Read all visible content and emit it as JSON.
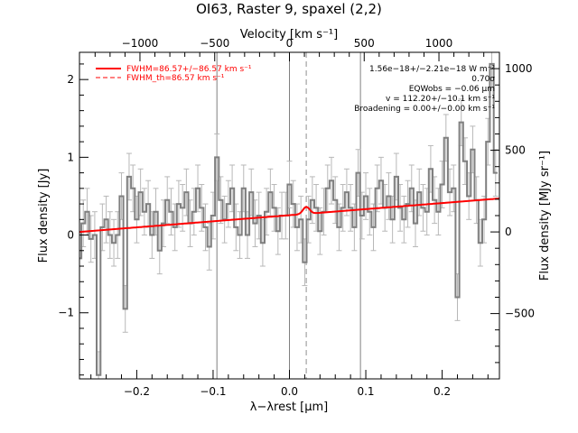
{
  "chart_data": {
    "type": "line",
    "title": "OI63, Raster 9, spaxel (2,2)",
    "xlabel": "λ−λrest [μm]",
    "ylabel_left": "Flux density [Jy]",
    "ylabel_right": "Flux density [MJy sr⁻¹]",
    "top_axis_label": "Velocity [km s⁻¹]",
    "xlim": [
      -0.275,
      0.275
    ],
    "ylim": [
      -1.85,
      2.35
    ],
    "right_ylim": [
      -900,
      1100
    ],
    "x_ticks": [
      -0.2,
      -0.1,
      0.0,
      0.1,
      0.2
    ],
    "x_tick_labels": [
      "−0.2",
      "−0.1",
      "0.0",
      "0.1",
      "0.2"
    ],
    "y_ticks": [
      -1,
      0,
      1,
      2
    ],
    "y_tick_labels": [
      "−1",
      "0",
      "1",
      "2"
    ],
    "right_ticks": [
      -500,
      0,
      500,
      1000
    ],
    "right_tick_labels": [
      "−500",
      "0",
      "500",
      "1000"
    ],
    "top_ticks_kms": [
      -1000,
      -500,
      0,
      500,
      1000
    ],
    "top_tick_labels": [
      "−1000",
      "−500",
      "0",
      "500",
      "1000"
    ],
    "vertical_lines_x": [
      -0.095,
      0.0,
      0.093
    ],
    "line_center_x": 0.022,
    "legend": {
      "position": "top-left",
      "entries": [
        {
          "label": "FWHM=86.57+/−86.57 km s⁻¹",
          "style": "solid",
          "color": "#ff0000"
        },
        {
          "label": "FWHM_th=86.57 km s⁻¹",
          "style": "dashed",
          "color": "#ff0000"
        }
      ]
    },
    "annotations": [
      "1.56e−18+/−2.21e−18 W m⁻²",
      "0.70σ",
      "EQWobs = −0.06 μm",
      "v = 112.20+/−10.1 km s⁻¹",
      "Broadening = 0.00+/−0.00 km s⁻¹"
    ],
    "series": [
      {
        "style": "steps",
        "color": "#7f7f7f",
        "x": [
          -0.275,
          -0.27,
          -0.265,
          -0.26,
          -0.255,
          -0.25,
          -0.245,
          -0.24,
          -0.235,
          -0.23,
          -0.225,
          -0.22,
          -0.215,
          -0.21,
          -0.205,
          -0.2,
          -0.195,
          -0.19,
          -0.185,
          -0.18,
          -0.175,
          -0.17,
          -0.165,
          -0.16,
          -0.155,
          -0.15,
          -0.145,
          -0.14,
          -0.135,
          -0.13,
          -0.125,
          -0.12,
          -0.115,
          -0.11,
          -0.105,
          -0.1,
          -0.095,
          -0.09,
          -0.085,
          -0.08,
          -0.075,
          -0.07,
          -0.065,
          -0.06,
          -0.055,
          -0.05,
          -0.045,
          -0.04,
          -0.035,
          -0.03,
          -0.025,
          -0.02,
          -0.015,
          -0.01,
          -0.005,
          0.0,
          0.005,
          0.01,
          0.015,
          0.02,
          0.025,
          0.03,
          0.035,
          0.04,
          0.045,
          0.05,
          0.055,
          0.06,
          0.065,
          0.07,
          0.075,
          0.08,
          0.085,
          0.09,
          0.095,
          0.1,
          0.105,
          0.11,
          0.115,
          0.12,
          0.125,
          0.13,
          0.135,
          0.14,
          0.145,
          0.15,
          0.155,
          0.16,
          0.165,
          0.17,
          0.175,
          0.18,
          0.185,
          0.19,
          0.195,
          0.2,
          0.205,
          0.21,
          0.215,
          0.22,
          0.225,
          0.23,
          0.235,
          0.24,
          0.245,
          0.25,
          0.255,
          0.26,
          0.265,
          0.27
        ],
        "y": [
          -0.3,
          0.15,
          0.3,
          -0.05,
          0.0,
          -1.8,
          0.1,
          0.2,
          0.0,
          -0.1,
          0.0,
          0.5,
          -0.95,
          0.75,
          0.6,
          0.2,
          0.55,
          0.3,
          0.4,
          0.0,
          0.3,
          -0.2,
          0.15,
          0.45,
          0.3,
          0.1,
          0.4,
          0.35,
          0.55,
          0.15,
          0.3,
          0.6,
          0.35,
          0.1,
          -0.15,
          0.25,
          1.0,
          0.45,
          0.2,
          0.4,
          0.6,
          0.1,
          0.0,
          0.6,
          0.0,
          0.55,
          0.15,
          0.25,
          -0.1,
          0.3,
          0.55,
          0.35,
          0.05,
          0.25,
          0.25,
          0.65,
          0.4,
          0.1,
          0.2,
          -0.35,
          0.2,
          0.45,
          0.35,
          0.05,
          0.3,
          0.6,
          0.7,
          0.45,
          0.1,
          0.35,
          0.55,
          0.35,
          0.1,
          0.8,
          0.25,
          0.5,
          0.3,
          0.1,
          0.6,
          0.7,
          0.35,
          0.5,
          0.2,
          0.75,
          0.35,
          0.2,
          0.4,
          0.6,
          0.15,
          0.55,
          0.35,
          0.3,
          0.85,
          0.45,
          0.3,
          0.65,
          1.25,
          0.55,
          0.6,
          -0.8,
          1.45,
          0.95,
          0.5,
          1.1,
          0.45,
          -0.1,
          0.2,
          1.2,
          2.2,
          0.8
        ],
        "err": 0.3
      },
      {
        "name": "FWHM=86.57+/−86.57 km s⁻¹",
        "style": "solid",
        "color": "#ff0000",
        "baseline_at_xmin": 0.04,
        "baseline_at_xmax": 0.47,
        "gaussian_center": 0.022,
        "gaussian_peak": 0.09,
        "gaussian_sigma": 0.0043
      }
    ]
  }
}
